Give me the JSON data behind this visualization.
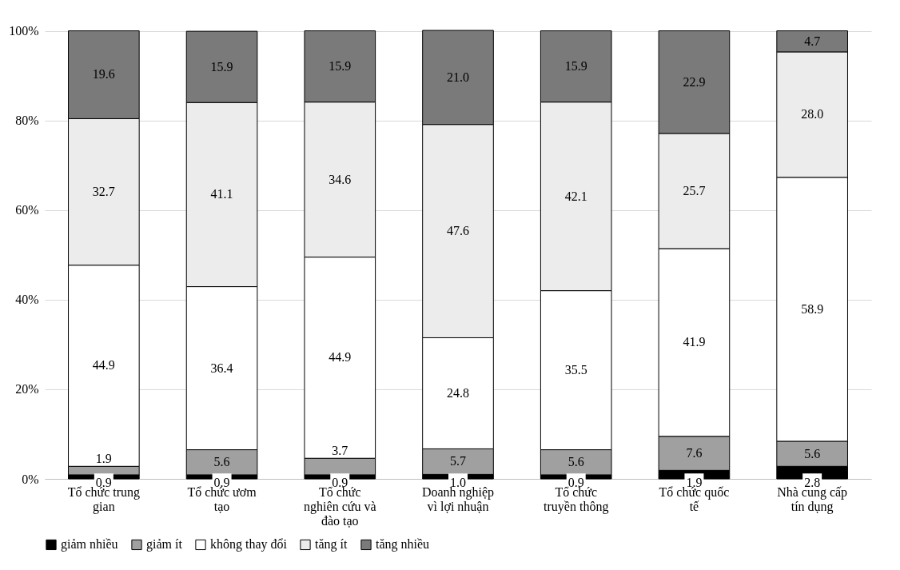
{
  "chart_data": {
    "type": "bar",
    "stacked": true,
    "categories": [
      "Tổ chức trung gian",
      "Tổ chức ươm tạo",
      "Tổ chức nghiên cứu và đào tạo",
      "Doanh nghiệp vì lợi nhuận",
      "Tổ chức truyền thông",
      "Tổ chức quốc tế",
      "Nhà cung cấp tín dụng"
    ],
    "series": [
      {
        "name": "giảm nhiều",
        "color": "#000000",
        "values": [
          0.9,
          0.9,
          0.9,
          1.0,
          0.9,
          1.9,
          2.8
        ],
        "value_labels": [
          "0.9",
          "0.9",
          "0.9",
          "1.0",
          "0.9",
          "1.9",
          "2.8"
        ]
      },
      {
        "name": "giảm ít",
        "color": "#a0a0a0",
        "values": [
          1.9,
          5.6,
          3.7,
          5.7,
          5.6,
          7.6,
          5.6
        ],
        "value_labels": [
          "1.9",
          "5.6",
          "3.7",
          "5.7",
          "5.6",
          "7.6",
          "5.6"
        ]
      },
      {
        "name": "không thay đổi",
        "color": "#ffffff",
        "values": [
          44.9,
          36.4,
          44.9,
          24.8,
          35.5,
          41.9,
          58.9
        ],
        "value_labels": [
          "44.9",
          "36.4",
          "44.9",
          "24.8",
          "35.5",
          "41.9",
          "58.9"
        ]
      },
      {
        "name": "tăng ít",
        "color": "#ececec",
        "values": [
          32.7,
          41.1,
          34.6,
          47.6,
          42.1,
          25.7,
          28.0
        ],
        "value_labels": [
          "32.7",
          "41.1",
          "34.6",
          "47.6",
          "42.1",
          "25.7",
          "28.0"
        ]
      },
      {
        "name": "tăng nhiều",
        "color": "#7a7a7a",
        "values": [
          19.6,
          15.9,
          15.9,
          21.0,
          15.9,
          22.9,
          4.7
        ],
        "value_labels": [
          "19.6",
          "15.9",
          "15.9",
          "21.0",
          "15.9",
          "22.9",
          "4.7"
        ]
      }
    ],
    "ylim": [
      0,
      100.1
    ],
    "yticks": [
      {
        "value": 0,
        "label": "0%"
      },
      {
        "value": 20,
        "label": "20%"
      },
      {
        "value": 40,
        "label": "40%"
      },
      {
        "value": 60,
        "label": "60%"
      },
      {
        "value": 80,
        "label": "80%"
      },
      {
        "value": 100,
        "label": "100%"
      }
    ],
    "grid": "y",
    "legend": "bottom"
  }
}
